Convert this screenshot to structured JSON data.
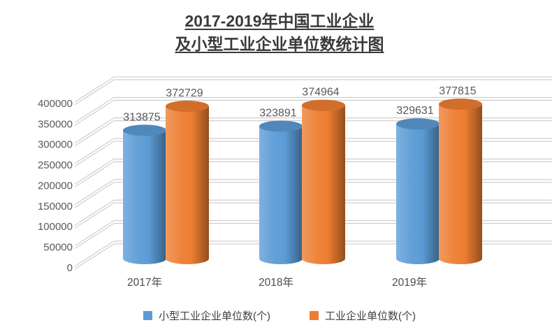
{
  "title": {
    "line1": "2017-2019年中国工业企业",
    "line2": "及小型工业企业单位数统计图"
  },
  "chart_data": {
    "type": "bar",
    "subtype": "3d-cylinder",
    "title": "2017-2019年中国工业企业及小型工业企业单位数统计图",
    "categories": [
      "2017年",
      "2018年",
      "2019年"
    ],
    "series": [
      {
        "name": "小型工业企业单位数(个)",
        "color": "#5B9BD5",
        "values": [
          313875,
          323891,
          329631
        ]
      },
      {
        "name": "工业企业单位数(个)",
        "color": "#ED7D31",
        "values": [
          372729,
          374964,
          377815
        ]
      }
    ],
    "data_labels": true,
    "ylim": [
      0,
      400000
    ],
    "yticks": [
      0,
      50000,
      100000,
      150000,
      200000,
      250000,
      300000,
      350000,
      400000
    ],
    "xlabel": "",
    "ylabel": "",
    "grid": true,
    "legend_position": "bottom",
    "colors": {
      "axis_text": "#595959",
      "value_label_text": "#595959",
      "category_text": "#4d4d4d",
      "gridline": "#c4c4c4",
      "background": "#ffffff"
    }
  }
}
